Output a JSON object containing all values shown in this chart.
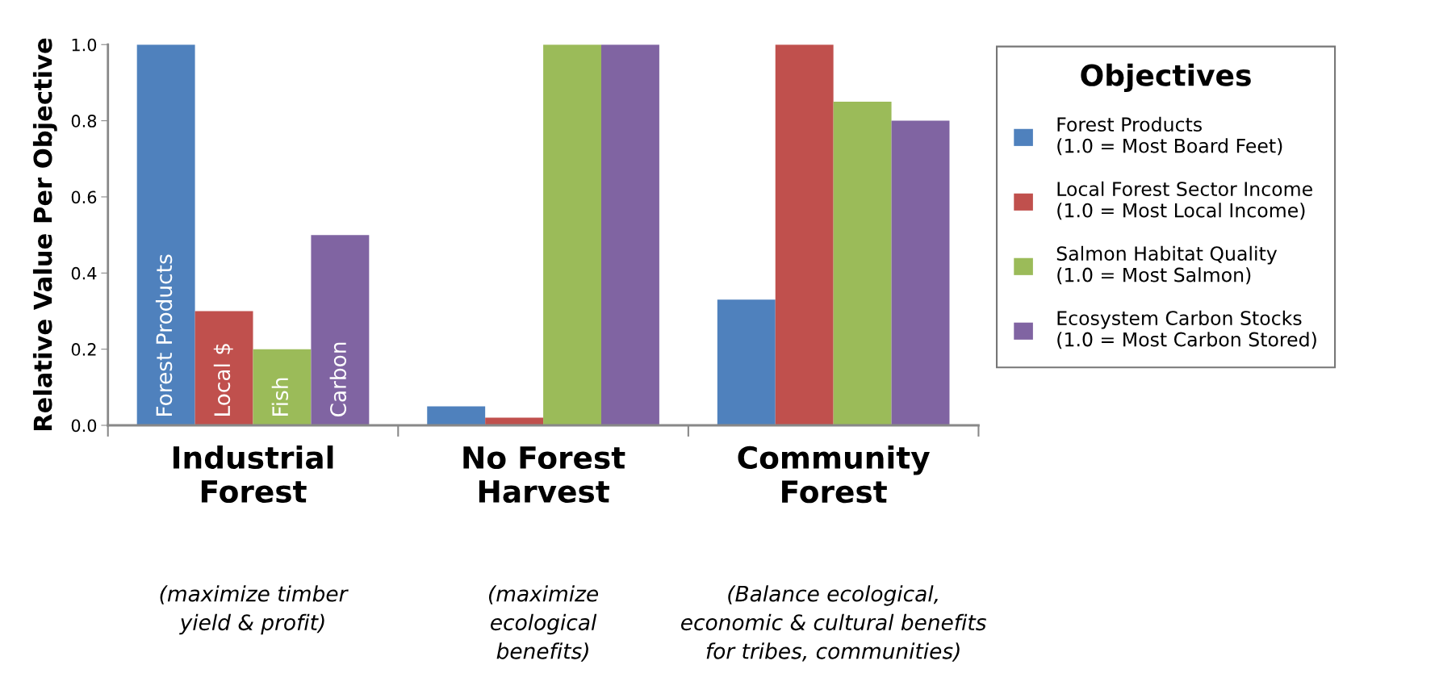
{
  "chart_data": {
    "type": "bar",
    "ylabel": "Relative Value Per Objective",
    "legend_title": "Objectives",
    "categories": [
      "Industrial\nForest",
      "No Forest\nHarvest",
      "Community\nForest"
    ],
    "series": [
      {
        "name": "Forest Products\n(1.0 = Most Board Feet)",
        "color": "#4f81bd",
        "values": [
          1.0,
          0.05,
          0.33
        ]
      },
      {
        "name": "Local Forest Sector Income\n(1.0 = Most Local Income)",
        "color": "#c0504d",
        "values": [
          0.3,
          0.02,
          1.0
        ]
      },
      {
        "name": "Salmon Habitat Quality\n(1.0 = Most Salmon)",
        "color": "#9bbb59",
        "values": [
          0.2,
          1.0,
          0.85
        ]
      },
      {
        "name": "Ecosystem Carbon Stocks\n(1.0 = Most Carbon Stored)",
        "color": "#8064a2",
        "values": [
          0.5,
          1.0,
          0.8
        ]
      }
    ],
    "ylim": [
      0,
      1.0
    ],
    "yticks": [
      {
        "value": 0,
        "label": "0.0"
      },
      {
        "value": 0.2,
        "label": "0.2"
      },
      {
        "value": 0.4,
        "label": "0.4"
      },
      {
        "value": 0.6,
        "label": "0.6"
      },
      {
        "value": 0.8,
        "label": "0.8"
      },
      {
        "value": 1.0,
        "label": "1.0"
      }
    ],
    "annotations": [
      "(maximize timber\nyield & profit)",
      "(maximize\necological\nbenefits)",
      "(Balance ecological,\neconomic & cultural benefits\nfor tribes, communities)",
      "Forest Products",
      "Local $",
      "Fish",
      "Carbon"
    ],
    "grid": false,
    "legend": "right"
  }
}
